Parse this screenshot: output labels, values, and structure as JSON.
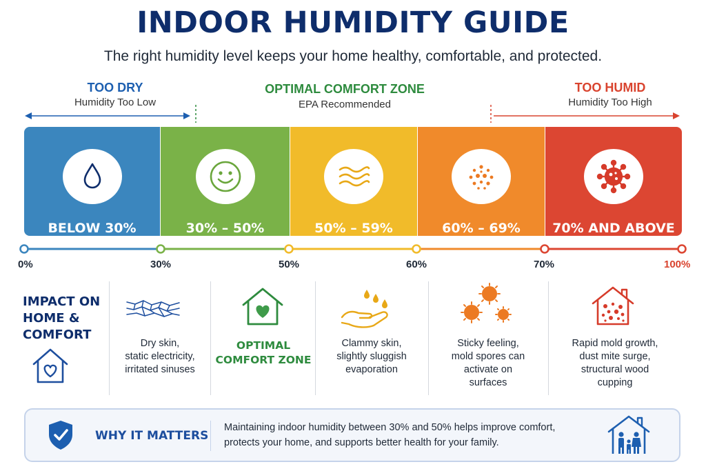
{
  "header": {
    "title": "INDOOR HUMIDITY GUIDE",
    "subtitle": "The right humidity level keeps your home healthy, comfortable, and protected."
  },
  "zones": {
    "dry": {
      "title": "TOO DRY",
      "subtitle": "Humidity Too Low",
      "color": "#1d5fb0"
    },
    "optimal": {
      "title": "OPTIMAL COMFORT ZONE",
      "subtitle": "EPA Recommended",
      "color": "#2e8b3e"
    },
    "humid": {
      "title": "TOO HUMID",
      "subtitle": "Humidity Too High",
      "color": "#d9432e"
    }
  },
  "bands": [
    {
      "label": "BELOW 30%",
      "color": "#3b86be",
      "icon": "water-drop-icon"
    },
    {
      "label": "30% – 50%",
      "color": "#7ab248",
      "icon": "smiley-face-icon"
    },
    {
      "label": "50% – 59%",
      "color": "#f1bb2a",
      "icon": "waves-icon"
    },
    {
      "label": "60% – 69%",
      "color": "#f08a2b",
      "icon": "spores-icon"
    },
    {
      "label": "70% AND ABOVE",
      "color": "#dc4632",
      "icon": "virus-icon"
    }
  ],
  "scale": {
    "ticks": [
      "0%",
      "30%",
      "50%",
      "60%",
      "70%",
      "100%"
    ]
  },
  "impact": {
    "title_lines": [
      "IMPACT ON",
      "HOME &",
      "COMFORT"
    ],
    "columns": [
      {
        "icon": "dry-cracks-icon",
        "lines": [
          "Dry skin,",
          "static electricity,",
          "irritated sinuses"
        ]
      },
      {
        "icon": "house-heart-icon",
        "lines": [
          "OPTIMAL",
          "COMFORT ZONE"
        ]
      },
      {
        "icon": "hand-droplets-icon",
        "lines": [
          "Clammy skin,",
          "slightly sluggish",
          "evaporation"
        ]
      },
      {
        "icon": "mold-spores-icon",
        "lines": [
          "Sticky feeling,",
          "mold spores can",
          "activate on",
          "surfaces"
        ]
      },
      {
        "icon": "moldy-house-icon",
        "lines": [
          "Rapid mold growth,",
          "dust mite surge,",
          "structural wood",
          "cupping"
        ]
      }
    ]
  },
  "why": {
    "title": "WHY IT MATTERS",
    "lines": [
      "Maintaining indoor humidity between 30% and 50% helps improve comfort,",
      "protects your home, and supports better health for your family."
    ]
  }
}
